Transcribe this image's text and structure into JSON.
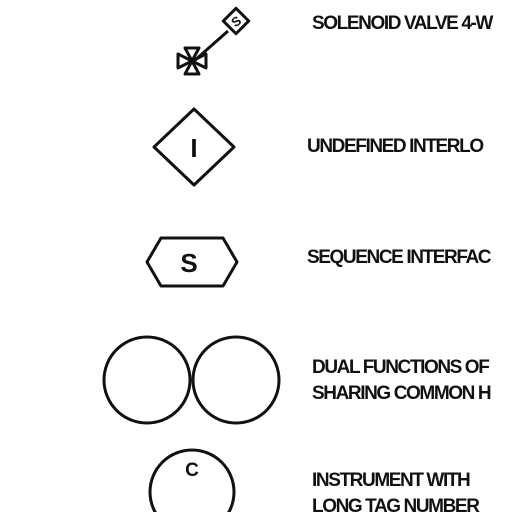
{
  "symbols": [
    {
      "label": "SOLENOID VALVE 4-W",
      "glyph": "S",
      "lines": []
    },
    {
      "label": "UNDEFINED INTERLO",
      "glyph": "I",
      "lines": []
    },
    {
      "label": "SEQUENCE INTERFAC",
      "glyph": "S",
      "lines": []
    },
    {
      "label": "",
      "glyph": "",
      "lines": [
        "DUAL FUNCTIONS OF",
        "SHARING COMMON H"
      ]
    },
    {
      "label": "",
      "glyph": "C",
      "lines": [
        "INSTRUMENT WITH",
        "LONG TAG NUMBER"
      ]
    }
  ]
}
